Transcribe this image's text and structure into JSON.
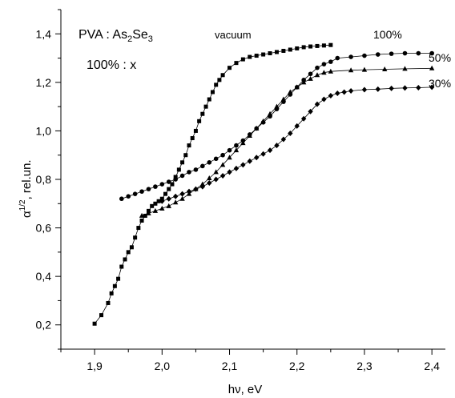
{
  "chart_data": {
    "type": "scatter",
    "title": "",
    "xlabel": "hν, eV",
    "ylabel": "α",
    "ylabel_superscript": "1/2",
    "ylabel_suffix": ", rel.un.",
    "xlim": [
      1.85,
      2.42
    ],
    "ylim": [
      0.1,
      1.5
    ],
    "x_ticks": [
      1.9,
      2.0,
      2.1,
      2.2,
      2.3,
      2.4
    ],
    "x_tick_labels": [
      "1,9",
      "2,0",
      "2,1",
      "2,2",
      "2,3",
      "2,4"
    ],
    "y_ticks": [
      0.2,
      0.4,
      0.6,
      0.8,
      1.0,
      1.2,
      1.4
    ],
    "y_tick_labels": [
      "0,2",
      "0,4",
      "0,6",
      "0,8",
      "1,0",
      "1,2",
      "1,4"
    ],
    "grid": false,
    "annotations": {
      "composition_prefix": "PVA : As",
      "composition_sub1": "2",
      "composition_mid": "Se",
      "composition_sub2": "3",
      "ratio": "100% : x"
    },
    "series": [
      {
        "name": "vacuum",
        "marker": "square",
        "x": [
          1.9,
          1.91,
          1.92,
          1.925,
          1.93,
          1.935,
          1.94,
          1.945,
          1.95,
          1.955,
          1.96,
          1.965,
          1.97,
          1.975,
          1.98,
          1.985,
          1.99,
          1.995,
          2.0,
          2.005,
          2.01,
          2.015,
          2.02,
          2.025,
          2.03,
          2.035,
          2.04,
          2.045,
          2.05,
          2.055,
          2.06,
          2.065,
          2.07,
          2.075,
          2.08,
          2.085,
          2.09,
          2.1,
          2.11,
          2.12,
          2.13,
          2.14,
          2.15,
          2.16,
          2.17,
          2.18,
          2.19,
          2.2,
          2.21,
          2.22,
          2.23,
          2.24,
          2.25
        ],
        "y": [
          0.205,
          0.24,
          0.29,
          0.33,
          0.36,
          0.39,
          0.44,
          0.47,
          0.5,
          0.52,
          0.56,
          0.6,
          0.63,
          0.65,
          0.67,
          0.69,
          0.7,
          0.71,
          0.72,
          0.74,
          0.76,
          0.78,
          0.81,
          0.84,
          0.87,
          0.9,
          0.94,
          0.97,
          1.0,
          1.04,
          1.07,
          1.1,
          1.13,
          1.16,
          1.19,
          1.21,
          1.23,
          1.26,
          1.28,
          1.295,
          1.305,
          1.31,
          1.315,
          1.32,
          1.325,
          1.33,
          1.335,
          1.34,
          1.345,
          1.348,
          1.35,
          1.352,
          1.354
        ]
      },
      {
        "name": "100%",
        "marker": "circle",
        "x": [
          1.94,
          1.95,
          1.96,
          1.97,
          1.98,
          1.99,
          2.0,
          2.01,
          2.02,
          2.03,
          2.04,
          2.05,
          2.06,
          2.07,
          2.08,
          2.09,
          2.1,
          2.11,
          2.12,
          2.13,
          2.14,
          2.15,
          2.16,
          2.17,
          2.18,
          2.19,
          2.2,
          2.21,
          2.22,
          2.23,
          2.24,
          2.25,
          2.26,
          2.28,
          2.3,
          2.32,
          2.34,
          2.36,
          2.38,
          2.4
        ],
        "y": [
          0.72,
          0.73,
          0.74,
          0.75,
          0.76,
          0.77,
          0.78,
          0.79,
          0.8,
          0.815,
          0.83,
          0.84,
          0.855,
          0.87,
          0.885,
          0.9,
          0.92,
          0.94,
          0.96,
          0.985,
          1.01,
          1.035,
          1.06,
          1.09,
          1.12,
          1.15,
          1.18,
          1.21,
          1.235,
          1.26,
          1.275,
          1.285,
          1.3,
          1.305,
          1.31,
          1.315,
          1.318,
          1.32,
          1.32,
          1.32
        ]
      },
      {
        "name": "50%",
        "marker": "triangle",
        "x": [
          1.97,
          1.98,
          1.99,
          2.0,
          2.01,
          2.02,
          2.03,
          2.04,
          2.05,
          2.06,
          2.07,
          2.08,
          2.09,
          2.1,
          2.11,
          2.12,
          2.13,
          2.14,
          2.15,
          2.16,
          2.17,
          2.18,
          2.19,
          2.2,
          2.21,
          2.22,
          2.23,
          2.24,
          2.25,
          2.28,
          2.3,
          2.33,
          2.36,
          2.4
        ],
        "y": [
          0.65,
          0.66,
          0.67,
          0.68,
          0.69,
          0.705,
          0.72,
          0.74,
          0.76,
          0.78,
          0.805,
          0.83,
          0.86,
          0.89,
          0.92,
          0.95,
          0.98,
          1.01,
          1.04,
          1.07,
          1.1,
          1.13,
          1.16,
          1.18,
          1.2,
          1.215,
          1.23,
          1.24,
          1.245,
          1.25,
          1.252,
          1.254,
          1.256,
          1.258
        ]
      },
      {
        "name": "30%",
        "marker": "diamond",
        "x": [
          2.0,
          2.01,
          2.02,
          2.03,
          2.04,
          2.05,
          2.06,
          2.07,
          2.08,
          2.09,
          2.1,
          2.11,
          2.12,
          2.13,
          2.14,
          2.15,
          2.16,
          2.17,
          2.18,
          2.19,
          2.2,
          2.21,
          2.22,
          2.23,
          2.24,
          2.25,
          2.26,
          2.27,
          2.28,
          2.3,
          2.32,
          2.34,
          2.36,
          2.38,
          2.4
        ],
        "y": [
          0.71,
          0.72,
          0.73,
          0.74,
          0.75,
          0.76,
          0.77,
          0.785,
          0.8,
          0.815,
          0.83,
          0.845,
          0.86,
          0.875,
          0.89,
          0.905,
          0.92,
          0.94,
          0.965,
          0.99,
          1.02,
          1.05,
          1.08,
          1.11,
          1.13,
          1.145,
          1.155,
          1.16,
          1.165,
          1.17,
          1.172,
          1.175,
          1.177,
          1.178,
          1.18
        ]
      }
    ]
  }
}
